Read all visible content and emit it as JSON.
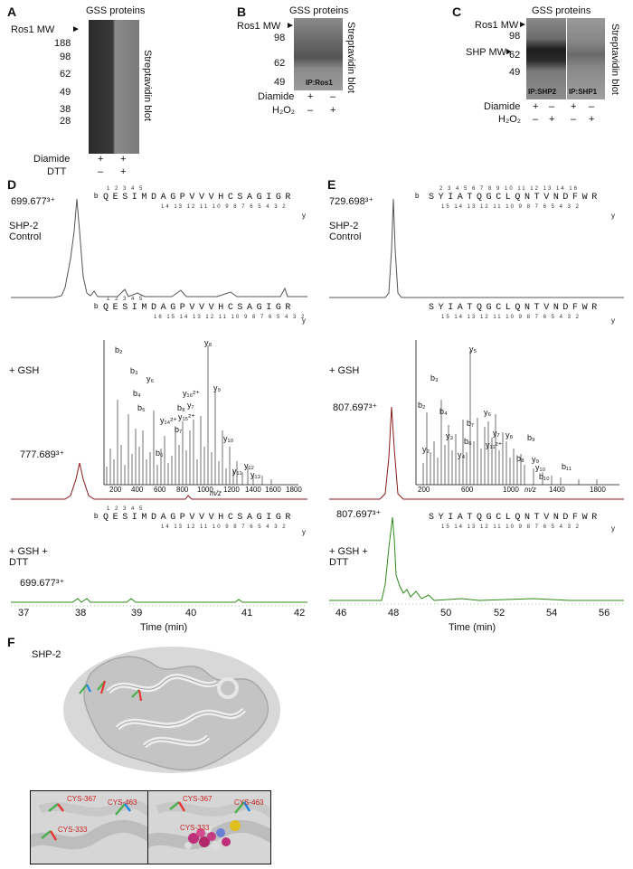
{
  "panelA": {
    "letter": "A",
    "title": "GSS proteins",
    "mw_label": "Ros1 MW",
    "markers": [
      "188",
      "98",
      "62",
      "49",
      "38",
      "28"
    ],
    "side": "Streptavidin blot",
    "rows": [
      {
        "label": "Diamide",
        "vals": [
          "+",
          "+"
        ]
      },
      {
        "label": "DTT",
        "vals": [
          "–",
          "+"
        ]
      }
    ]
  },
  "panelB": {
    "letter": "B",
    "title": "GSS proteins",
    "mw_label": "Ros1 MW",
    "markers": [
      "98",
      "62",
      "49"
    ],
    "ip": "IP:Ros1",
    "side": "Streptavidin blot",
    "rows": [
      {
        "label": "Diamide",
        "vals": [
          "+",
          "–"
        ]
      },
      {
        "label": "H₂O₂",
        "vals": [
          "–",
          "+"
        ]
      }
    ]
  },
  "panelC": {
    "letter": "C",
    "title": "GSS proteins",
    "mw_label": "Ros1 MW",
    "shp_label": "SHP MW",
    "markers": [
      "98",
      "62",
      "49"
    ],
    "ip_left": "IP:SHP2",
    "ip_right": "IP:SHP1",
    "side": "Streptavidin blot",
    "rows": [
      {
        "label": "Diamide",
        "vals": [
          "+",
          "–",
          "+",
          "–"
        ]
      },
      {
        "label": "H₂O₂",
        "vals": [
          "–",
          "+",
          "–",
          "+"
        ]
      }
    ]
  },
  "panelD": {
    "letter": "D",
    "peak_control": "699.677³⁺",
    "peak_gsh": "777.689³⁺",
    "peak_dtt": "699.677³⁺",
    "seq": "QESIMDAGPVVVHCSAGIGR",
    "b_nums": "1 2 3 4 5",
    "y_nums_1": "14 13 12 11 10 9 8 7 6 5 4 3 2",
    "y_nums_2": "16 15 14 13 12 11 10 9 8 7 6 5 4 3 2",
    "row_labels": [
      "SHP-2 Control",
      "+ GSH",
      "+ GSH + DTT"
    ],
    "x_ticks": [
      "37",
      "38",
      "39",
      "40",
      "41",
      "42"
    ],
    "xlabel": "Time (min)",
    "ms_ticks": [
      "200",
      "400",
      "600",
      "800",
      "1000",
      "1200",
      "1400",
      "1600",
      "1800"
    ],
    "mz": "m/z",
    "ions": [
      "b₂",
      "b₃",
      "b₄",
      "b₅",
      "y₆",
      "y₈",
      "y₉",
      "y₁₆²⁺",
      "y₇",
      "y₁₅²⁺",
      "y₁₄²⁺",
      "b₈",
      "b₇",
      "b₆",
      "y₁₀",
      "y₁₂",
      "y₁₁",
      "y₁₃"
    ]
  },
  "panelE": {
    "letter": "E",
    "peak_control": "729.698³⁺",
    "peak_gsh": "807.697³⁺",
    "peak_dtt": "807.697³⁺",
    "seq": "SYIATQGCLQNTVNDFWR",
    "b_nums": "2 3 4 5 6 7 8 9 10 11 12 13 14 16",
    "y_nums_1": "15 14 13 12 11 10 9 8 7 6 5 4 3 2",
    "row_labels": [
      "SHP-2 Control",
      "+ GSH",
      "+ GSH + DTT"
    ],
    "x_ticks": [
      "46",
      "48",
      "50",
      "52",
      "54",
      "56"
    ],
    "xlabel": "Time (min)",
    "ms_ticks": [
      "200",
      "600",
      "1000",
      "1400",
      "1800"
    ],
    "mz": "m/z",
    "ions": [
      "b₂",
      "b₃",
      "b₄",
      "y₂",
      "y₃",
      "y₄",
      "y₅",
      "b₇",
      "b₆",
      "y₆",
      "y₇",
      "y₁₁²⁺",
      "y₈",
      "b₉",
      "b₈",
      "y₉",
      "y₁₀",
      "b₁₀",
      "b₁₁"
    ]
  },
  "panelF": {
    "letter": "F",
    "protein": "SHP-2",
    "residues": [
      "CYS-367",
      "CYS-463",
      "CYS-333"
    ]
  },
  "colors": {
    "control": "#555555",
    "gsh": "#8b1a1a",
    "dtt": "#2e8b1a",
    "residue": "#cc2222"
  }
}
